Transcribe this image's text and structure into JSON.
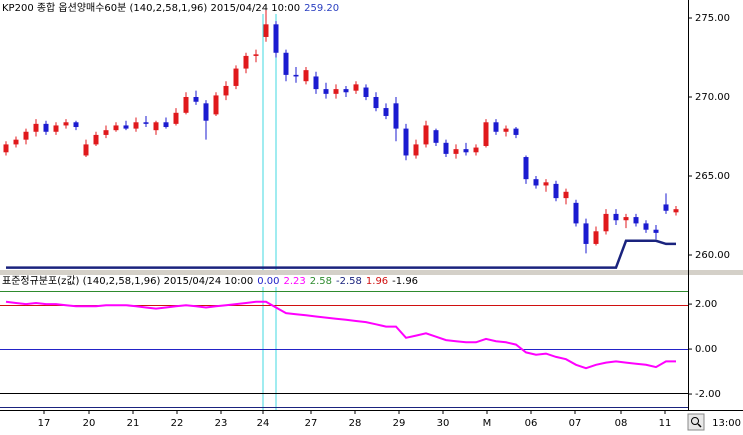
{
  "chart_data": [
    {
      "type": "candlestick",
      "title": "KP200 종합 옵션양매수60분 (140,2,58,1,96) 2015/04/24 10:00",
      "legend_values": [
        {
          "label": "259.20",
          "color": "#2a3fc0"
        }
      ],
      "up_color": "#e0191c",
      "down_color": "#1b1bd0",
      "xlim": [
        -0.6,
        68.2
      ],
      "ylim": [
        259.05,
        276.14
      ],
      "yticks": [
        {
          "value": 275,
          "label": "275.00"
        },
        {
          "value": 270,
          "label": "270.00"
        },
        {
          "value": 265,
          "label": "265.00"
        },
        {
          "value": 260,
          "label": "260.00"
        }
      ],
      "cursor_lines": [
        25.7,
        27.0
      ],
      "cursor_color": "#40d8e0",
      "candles": [
        [
          266.5,
          267.2,
          266.3,
          267.0
        ],
        [
          267.0,
          267.5,
          266.8,
          267.3
        ],
        [
          267.3,
          268.0,
          267.0,
          267.8
        ],
        [
          267.8,
          268.6,
          267.5,
          268.3
        ],
        [
          268.3,
          268.5,
          267.6,
          267.8
        ],
        [
          267.8,
          268.4,
          267.6,
          268.2
        ],
        [
          268.2,
          268.6,
          268.0,
          268.4
        ],
        [
          268.4,
          268.5,
          267.9,
          268.1
        ],
        [
          266.3,
          267.3,
          266.2,
          267.0
        ],
        [
          267.0,
          267.8,
          266.9,
          267.6
        ],
        [
          267.6,
          268.2,
          267.4,
          267.9
        ],
        [
          267.9,
          268.4,
          267.8,
          268.2
        ],
        [
          268.2,
          268.5,
          267.9,
          268.0
        ],
        [
          268.0,
          268.7,
          267.8,
          268.4
        ],
        [
          268.4,
          268.8,
          268.1,
          268.3
        ],
        [
          267.9,
          268.5,
          267.6,
          268.4
        ],
        [
          268.4,
          268.7,
          268.0,
          268.1
        ],
        [
          268.3,
          269.3,
          268.2,
          269.0
        ],
        [
          269.0,
          270.3,
          268.9,
          270.0
        ],
        [
          270.0,
          270.4,
          269.5,
          269.7
        ],
        [
          269.6,
          269.8,
          267.3,
          268.5
        ],
        [
          268.9,
          270.3,
          268.8,
          270.1
        ],
        [
          270.1,
          271.0,
          269.8,
          270.7
        ],
        [
          270.7,
          272.0,
          270.5,
          271.8
        ],
        [
          271.8,
          272.8,
          271.5,
          272.6
        ],
        [
          272.6,
          273.0,
          272.2,
          272.7
        ],
        [
          273.8,
          275.5,
          273.5,
          274.6
        ],
        [
          274.6,
          274.8,
          272.5,
          272.8
        ],
        [
          272.8,
          273.0,
          271.0,
          271.4
        ],
        [
          271.4,
          271.9,
          270.9,
          271.3
        ],
        [
          271.0,
          271.9,
          270.8,
          271.7
        ],
        [
          271.3,
          271.6,
          270.2,
          270.5
        ],
        [
          270.5,
          270.9,
          269.9,
          270.2
        ],
        [
          270.2,
          270.8,
          269.9,
          270.5
        ],
        [
          270.5,
          270.7,
          270.0,
          270.3
        ],
        [
          270.4,
          271.0,
          270.2,
          270.8
        ],
        [
          270.6,
          270.8,
          269.8,
          270.0
        ],
        [
          270.0,
          270.3,
          269.1,
          269.3
        ],
        [
          269.3,
          269.6,
          268.6,
          268.8
        ],
        [
          269.6,
          270.0,
          267.2,
          268.0
        ],
        [
          268.0,
          268.3,
          266.0,
          266.3
        ],
        [
          266.3,
          267.3,
          266.1,
          267.0
        ],
        [
          267.0,
          268.5,
          266.8,
          268.2
        ],
        [
          267.9,
          268.0,
          266.9,
          267.1
        ],
        [
          267.1,
          267.3,
          266.2,
          266.4
        ],
        [
          266.4,
          267.0,
          266.1,
          266.7
        ],
        [
          266.7,
          267.1,
          266.3,
          266.5
        ],
        [
          266.5,
          267.0,
          266.3,
          266.8
        ],
        [
          266.9,
          268.6,
          266.8,
          268.4
        ],
        [
          268.4,
          268.6,
          267.6,
          267.8
        ],
        [
          267.8,
          268.2,
          267.5,
          268.0
        ],
        [
          268.0,
          268.1,
          267.4,
          267.6
        ],
        [
          266.2,
          266.3,
          264.5,
          264.8
        ],
        [
          264.8,
          265.0,
          264.2,
          264.4
        ],
        [
          264.4,
          264.8,
          264.0,
          264.6
        ],
        [
          264.5,
          264.7,
          263.4,
          263.6
        ],
        [
          263.6,
          264.2,
          263.2,
          264.0
        ],
        [
          263.3,
          263.5,
          261.8,
          262.0
        ],
        [
          262.0,
          262.3,
          260.1,
          260.7
        ],
        [
          260.7,
          261.8,
          260.6,
          261.5
        ],
        [
          261.5,
          262.9,
          261.3,
          262.6
        ],
        [
          262.6,
          262.9,
          261.9,
          262.2
        ],
        [
          262.2,
          262.6,
          261.7,
          262.4
        ],
        [
          262.4,
          262.6,
          261.8,
          262.0
        ],
        [
          262.0,
          262.2,
          261.4,
          261.6
        ],
        [
          261.6,
          261.9,
          261.0,
          261.4
        ],
        [
          263.2,
          263.9,
          262.6,
          262.8
        ],
        [
          262.7,
          263.1,
          262.5,
          262.9
        ]
      ],
      "line": {
        "color": "#1a237e",
        "values": [
          259.2,
          259.2,
          259.2,
          259.2,
          259.2,
          259.2,
          259.2,
          259.2,
          259.2,
          259.2,
          259.2,
          259.2,
          259.2,
          259.2,
          259.2,
          259.2,
          259.2,
          259.2,
          259.2,
          259.2,
          259.2,
          259.2,
          259.2,
          259.2,
          259.2,
          259.2,
          259.2,
          259.2,
          259.2,
          259.2,
          259.2,
          259.2,
          259.2,
          259.2,
          259.2,
          259.2,
          259.2,
          259.2,
          259.2,
          259.2,
          259.2,
          259.2,
          259.2,
          259.2,
          259.2,
          259.2,
          259.2,
          259.2,
          259.2,
          259.2,
          259.2,
          259.2,
          259.2,
          259.2,
          259.2,
          259.2,
          259.2,
          259.2,
          259.2,
          259.2,
          259.2,
          259.2,
          260.9,
          260.9,
          260.9,
          260.9,
          260.7,
          260.7
        ]
      }
    },
    {
      "type": "line",
      "title": "표준정규분포(z값) (140,2,58,1,96) 2015/04/24 10:00",
      "legend_values": [
        {
          "label": "0.00",
          "color": "#2323c8"
        },
        {
          "label": "2.23",
          "color": "#ff00ff"
        },
        {
          "label": "2.58",
          "color": "#2e8b2e"
        },
        {
          "label": "-2.58",
          "color": "#1a237e"
        },
        {
          "label": "1.96",
          "color": "#d01010"
        },
        {
          "label": "-1.96",
          "color": "#000000"
        }
      ],
      "xlim": [
        -0.6,
        68.2
      ],
      "ylim": [
        -2.71,
        2.76
      ],
      "yticks": [
        {
          "value": 2,
          "label": "2.00"
        },
        {
          "value": 0,
          "label": "0.00"
        },
        {
          "value": -2,
          "label": "-2.00"
        }
      ],
      "ref_lines": [
        {
          "value": 2.58,
          "color": "#2e8b2e"
        },
        {
          "value": 1.96,
          "color": "#d01010"
        },
        {
          "value": 0,
          "color": "#2323c8"
        },
        {
          "value": -1.96,
          "color": "#000000"
        },
        {
          "value": -2.58,
          "color": "#1a237e"
        }
      ],
      "series": [
        {
          "color": "#ff00ff",
          "values": [
            2.1,
            2.05,
            2.0,
            2.05,
            2.0,
            2.0,
            1.95,
            1.9,
            1.9,
            1.9,
            1.95,
            1.95,
            1.95,
            1.9,
            1.85,
            1.8,
            1.85,
            1.9,
            1.95,
            1.9,
            1.85,
            1.9,
            1.95,
            2.0,
            2.05,
            2.1,
            2.1,
            1.85,
            1.6,
            1.55,
            1.5,
            1.45,
            1.4,
            1.35,
            1.3,
            1.25,
            1.2,
            1.1,
            1.0,
            1.0,
            0.5,
            0.6,
            0.7,
            0.55,
            0.4,
            0.35,
            0.3,
            0.3,
            0.45,
            0.35,
            0.3,
            0.2,
            -0.15,
            -0.25,
            -0.2,
            -0.35,
            -0.45,
            -0.7,
            -0.85,
            -0.7,
            -0.6,
            -0.55,
            -0.6,
            -0.65,
            -0.7,
            -0.8,
            -0.55,
            -0.55
          ]
        }
      ],
      "xticks": [
        {
          "value": 3.8,
          "label": "17"
        },
        {
          "value": 8.3,
          "label": "20"
        },
        {
          "value": 12.7,
          "label": "21"
        },
        {
          "value": 17.1,
          "label": "22"
        },
        {
          "value": 21.5,
          "label": "23"
        },
        {
          "value": 25.7,
          "label": "24"
        },
        {
          "value": 30.5,
          "label": "27"
        },
        {
          "value": 34.9,
          "label": "28"
        },
        {
          "value": 39.3,
          "label": "29"
        },
        {
          "value": 43.7,
          "label": "30"
        },
        {
          "value": 48.1,
          "label": "M"
        },
        {
          "value": 52.5,
          "label": "06"
        },
        {
          "value": 56.9,
          "label": "07"
        },
        {
          "value": 61.5,
          "label": "08"
        },
        {
          "value": 65.9,
          "label": "11"
        }
      ],
      "time_label": "13:00"
    }
  ]
}
